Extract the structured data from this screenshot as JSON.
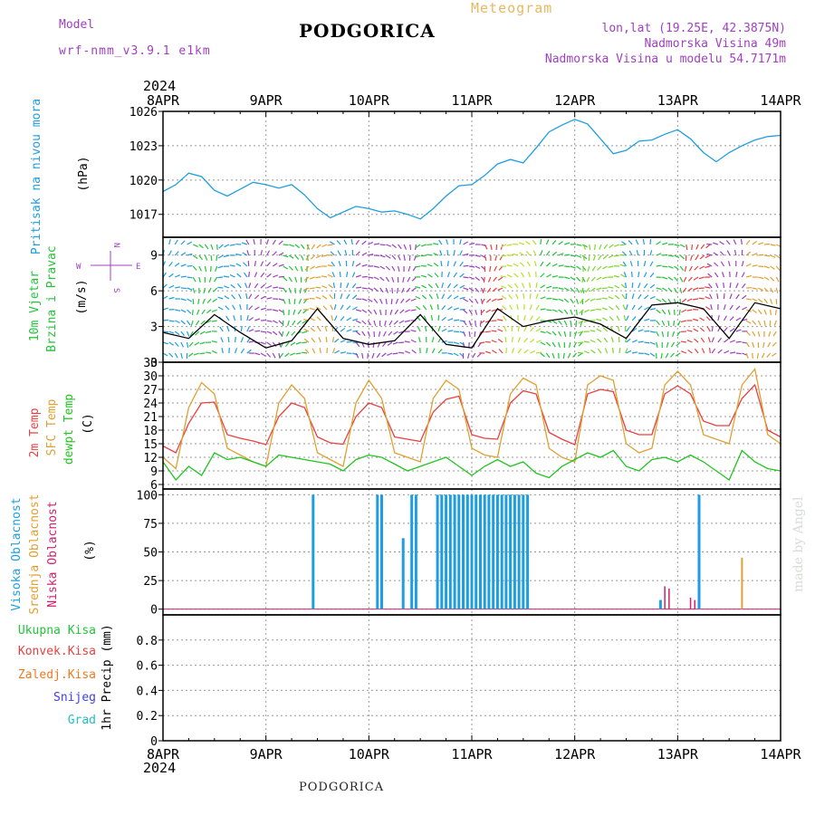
{
  "header": {
    "model_label": "Model",
    "model_value": "wrf-nmm_v3.9.1 e1km",
    "station": "PODGORICA",
    "title": "Meteogram",
    "lonlat": "lon,lat (19.25E, 42.3875N)",
    "elevation": "Nadmorska Visina 49m",
    "model_elevation": "Nadmorska Visina u modelu 54.7171m"
  },
  "footer": {
    "station": "PODGORICA"
  },
  "watermark": "made by Angel",
  "colors": {
    "pressure": "#1e9ee0",
    "wind_green": "#22c43a",
    "wind_purple": "#b040d0",
    "temp2m": "#e84040",
    "sfc": "#e0a030",
    "dewpt": "#22c422",
    "high_cloud": "#1e9ee0",
    "mid_cloud": "#e0a030",
    "low_cloud": "#d02070",
    "total_precip": "#22c43a",
    "conv_precip": "#e84040",
    "frozen_precip": "#f07820",
    "snow": "#4040e0",
    "graupel": "#20c0c0"
  },
  "axes": {
    "year": "2024",
    "days": [
      "8APR",
      "9APR",
      "10APR",
      "11APR",
      "12APR",
      "13APR",
      "14APR"
    ]
  },
  "chart_data": [
    {
      "type": "line",
      "panel": "pressure",
      "ylabel": [
        "Pritisak na nivou mora",
        "(hPa)"
      ],
      "ylim": [
        1015,
        1026
      ],
      "yticks": [
        "1017",
        "1020",
        "1023",
        "1026"
      ],
      "series": [
        {
          "name": "Pritisak na nivou mora",
          "x": [
            0,
            3,
            6,
            9,
            12,
            15,
            18,
            21,
            24,
            27,
            30,
            33,
            36,
            39,
            42,
            45,
            48,
            51,
            54,
            57,
            60,
            63,
            66,
            69,
            72,
            75,
            78,
            81,
            84,
            87,
            90,
            93,
            96,
            99,
            102,
            105,
            108,
            111,
            114,
            117,
            120,
            123,
            126,
            129,
            132,
            135,
            138,
            141,
            144
          ],
          "values": [
            1019.0,
            1019.6,
            1020.6,
            1020.3,
            1019.1,
            1018.6,
            1019.2,
            1019.8,
            1019.6,
            1019.3,
            1019.6,
            1018.7,
            1017.5,
            1016.7,
            1017.2,
            1017.7,
            1017.5,
            1017.2,
            1017.3,
            1017.0,
            1016.6,
            1017.5,
            1018.6,
            1019.5,
            1019.6,
            1020.4,
            1021.4,
            1021.8,
            1021.5,
            1022.8,
            1024.2,
            1024.8,
            1025.3,
            1024.9,
            1023.6,
            1022.3,
            1022.6,
            1023.4,
            1023.5,
            1024.0,
            1024.4,
            1023.6,
            1022.4,
            1021.6,
            1022.4,
            1023.0,
            1023.5,
            1023.8,
            1023.9
          ]
        }
      ]
    },
    {
      "type": "line",
      "panel": "wind",
      "ylabel": [
        "10m Vjetar",
        "Brzina i Pravac",
        "(m/s)"
      ],
      "direction_legend": [
        "N",
        "W",
        "E",
        "S"
      ],
      "ylim": [
        0,
        10.5
      ],
      "yticks": [
        "0",
        "3",
        "6",
        "9"
      ],
      "series": [
        {
          "name": "10m Vjetar",
          "x": [
            0,
            6,
            12,
            18,
            24,
            30,
            36,
            42,
            48,
            54,
            60,
            66,
            72,
            78,
            84,
            90,
            96,
            102,
            108,
            114,
            120,
            126,
            132,
            138,
            144
          ],
          "values": [
            2.5,
            2.0,
            4.0,
            2.5,
            1.2,
            1.8,
            4.5,
            2.0,
            1.5,
            1.8,
            4.0,
            1.5,
            1.2,
            4.5,
            3.0,
            3.5,
            3.8,
            3.2,
            2.0,
            4.8,
            5.0,
            4.5,
            2.0,
            5.0,
            4.5
          ]
        }
      ]
    },
    {
      "type": "line",
      "panel": "temperature",
      "ylabel": [
        "2m Temp",
        "SFC Temp",
        "dewpt Temp",
        "(C)"
      ],
      "ylim": [
        5,
        33
      ],
      "yticks": [
        "6",
        "9",
        "12",
        "15",
        "18",
        "21",
        "24",
        "27",
        "30",
        "33"
      ],
      "series": [
        {
          "name": "2m Temp",
          "x": [
            0,
            3,
            6,
            9,
            12,
            15,
            18,
            21,
            24,
            27,
            30,
            33,
            36,
            39,
            42,
            45,
            48,
            51,
            54,
            57,
            60,
            63,
            66,
            69,
            72,
            75,
            78,
            81,
            84,
            87,
            90,
            93,
            96,
            99,
            102,
            105,
            108,
            111,
            114,
            117,
            120,
            123,
            126,
            129,
            132,
            135,
            138,
            141,
            144
          ],
          "values": [
            14.5,
            13.0,
            19.5,
            24.0,
            24.2,
            17.0,
            16.2,
            15.6,
            14.8,
            21.0,
            24.0,
            23.0,
            16.5,
            15.2,
            14.9,
            21.0,
            24.0,
            23.0,
            16.5,
            16.0,
            15.5,
            22.0,
            24.8,
            25.5,
            17.0,
            16.2,
            16.0,
            24.0,
            26.7,
            26.0,
            17.5,
            16.0,
            14.8,
            26.0,
            27.0,
            26.5,
            18.0,
            17.0,
            17.0,
            26.0,
            27.8,
            26.0,
            20.0,
            19.0,
            19.0,
            25.0,
            28.0,
            18.0,
            16.5
          ]
        },
        {
          "name": "SFC Temp",
          "x": [
            0,
            3,
            6,
            9,
            12,
            15,
            18,
            21,
            24,
            27,
            30,
            33,
            36,
            39,
            42,
            45,
            48,
            51,
            54,
            57,
            60,
            63,
            66,
            69,
            72,
            75,
            78,
            81,
            84,
            87,
            90,
            93,
            96,
            99,
            102,
            105,
            108,
            111,
            114,
            117,
            120,
            123,
            126,
            129,
            132,
            135,
            138,
            141,
            144
          ],
          "values": [
            12.0,
            9.5,
            23.0,
            28.5,
            26.0,
            14.0,
            12.5,
            11.0,
            10.0,
            24.0,
            28.0,
            25.0,
            13.0,
            11.5,
            10.0,
            24.0,
            29.0,
            25.0,
            13.0,
            12.0,
            11.0,
            25.0,
            29.0,
            27.0,
            14.0,
            12.5,
            12.0,
            26.0,
            29.5,
            28.0,
            14.0,
            12.0,
            11.0,
            28.0,
            30.0,
            29.0,
            15.0,
            13.0,
            14.0,
            28.0,
            31.0,
            28.0,
            17.0,
            16.0,
            15.0,
            28.0,
            31.5,
            17.0,
            15.0
          ]
        },
        {
          "name": "dewpt Temp",
          "x": [
            0,
            3,
            6,
            9,
            12,
            15,
            18,
            21,
            24,
            27,
            30,
            33,
            36,
            39,
            42,
            45,
            48,
            51,
            54,
            57,
            60,
            63,
            66,
            69,
            72,
            75,
            78,
            81,
            84,
            87,
            90,
            93,
            96,
            99,
            102,
            105,
            108,
            111,
            114,
            117,
            120,
            123,
            126,
            129,
            132,
            135,
            138,
            141,
            144
          ],
          "values": [
            11.0,
            7.0,
            10.0,
            8.0,
            13.0,
            11.5,
            12.0,
            11.0,
            10.0,
            12.5,
            12.0,
            11.5,
            11.0,
            10.5,
            9.0,
            11.5,
            12.5,
            12.0,
            10.5,
            9.0,
            10.0,
            11.0,
            12.0,
            10.0,
            8.0,
            10.0,
            11.5,
            10.0,
            11.0,
            8.5,
            7.5,
            10.0,
            11.5,
            13.0,
            12.0,
            13.5,
            10.0,
            9.0,
            11.5,
            12.0,
            11.0,
            12.5,
            11.0,
            9.0,
            7.0,
            13.5,
            11.0,
            9.5,
            9.0
          ]
        }
      ]
    },
    {
      "type": "bar",
      "panel": "clouds",
      "ylabel": [
        "Visoka Oblacnost",
        "Srednja Oblacnost",
        "Niska Oblacnost",
        "(%)"
      ],
      "ylim": [
        -5,
        105
      ],
      "yticks": [
        "0",
        "25",
        "50",
        "75",
        "100"
      ],
      "series": [
        {
          "name": "Visoka Oblacnost",
          "x": [
            35,
            50,
            51,
            52,
            55,
            56,
            57,
            58,
            59,
            60,
            61,
            62,
            63,
            64,
            65,
            66,
            67,
            68,
            69,
            70,
            71,
            72,
            73,
            74,
            75,
            76,
            77,
            78,
            79,
            80,
            81,
            82,
            83,
            84,
            85,
            86,
            87,
            88,
            89,
            90,
            91,
            92,
            93,
            94,
            95,
            96,
            97,
            98,
            99,
            100,
            101,
            102,
            103,
            104,
            105,
            106,
            107,
            108,
            109,
            110,
            111,
            112,
            113,
            114,
            115,
            116,
            117,
            118,
            119,
            120,
            121,
            122,
            123,
            124,
            125,
            126,
            127,
            128,
            129,
            130,
            131,
            132,
            133,
            134,
            135,
            136,
            137,
            138,
            139,
            140,
            141,
            142,
            143,
            144
          ],
          "values": [
            100,
            100,
            100,
            0,
            0,
            62,
            0,
            100,
            100,
            0,
            0,
            0,
            0,
            100,
            100,
            100,
            100,
            100,
            100,
            100,
            100,
            100,
            100,
            100,
            100,
            100,
            100,
            100,
            100,
            100,
            100,
            100,
            100,
            100,
            100,
            0,
            0,
            0,
            0,
            0,
            0,
            0,
            0,
            0,
            0,
            0,
            0,
            0,
            0,
            0,
            0,
            0,
            0,
            0,
            0,
            0,
            0,
            0,
            0,
            0,
            0,
            0,
            0,
            0,
            0,
            8,
            0,
            0,
            0,
            0,
            0,
            0,
            0,
            0,
            100,
            0,
            0,
            0,
            0,
            0,
            0,
            0,
            0,
            0,
            0,
            0,
            0,
            0,
            0,
            0,
            0,
            0,
            0,
            0
          ]
        },
        {
          "name": "Srednja Oblacnost",
          "x": [
            135
          ],
          "values": [
            45
          ]
        },
        {
          "name": "Niska Oblacnost",
          "x": [
            117,
            118,
            123,
            124
          ],
          "values": [
            20,
            18,
            10,
            8
          ]
        }
      ]
    },
    {
      "type": "bar",
      "panel": "precip",
      "ylabel": [
        "1hr Precip (mm)"
      ],
      "legend": [
        "Ukupna Kisa",
        "Konvek.Kisa",
        "Zaledj.Kisa",
        "Snijeg",
        "Grad"
      ],
      "ylim": [
        0,
        1.0
      ],
      "yticks": [
        "0",
        "0.2",
        "0.4",
        "0.6",
        "0.8"
      ],
      "series": [
        {
          "name": "Ukupna Kisa",
          "x": [],
          "values": []
        }
      ]
    }
  ]
}
